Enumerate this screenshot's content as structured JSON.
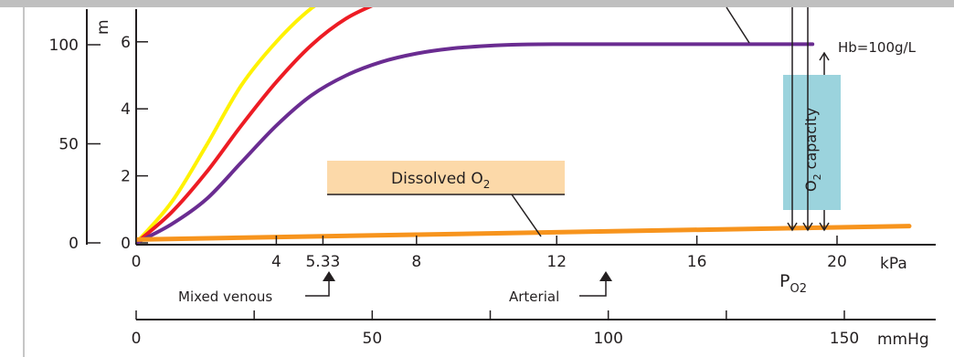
{
  "chart_data": {
    "type": "line",
    "title": "",
    "axes": {
      "kpa": {
        "unit": "kPa",
        "range": [
          0,
          20
        ],
        "ticks": [
          "0",
          "4",
          "5.33",
          "8",
          "12",
          "16",
          "20"
        ],
        "tick_values": [
          0,
          4,
          5.33,
          8,
          12,
          16,
          20
        ]
      },
      "mmhg": {
        "unit": "mmHg",
        "range": [
          0,
          150
        ],
        "ticks": [
          "0",
          "50",
          "100",
          "150"
        ],
        "tick_values": [
          0,
          50,
          100,
          150
        ]
      },
      "saturation_left": {
        "ticks": [
          "0",
          "50",
          "100"
        ],
        "tick_values": [
          0,
          50,
          100
        ]
      },
      "content_mmol": {
        "label_fragment": "m",
        "ticks": [
          "0",
          "2",
          "4",
          "6"
        ],
        "tick_values": [
          0,
          2,
          4,
          6
        ]
      },
      "xlabel_main": "P",
      "xlabel_sub": "O2"
    },
    "series": [
      {
        "name": "Hb=100g/L",
        "color": "#6a2c91",
        "x": [
          0,
          1,
          2,
          3,
          4,
          5,
          6,
          7,
          8,
          9,
          10,
          11,
          12,
          14,
          16,
          18,
          19.3
        ],
        "y": [
          0,
          0.55,
          1.3,
          2.4,
          3.5,
          4.4,
          5.0,
          5.4,
          5.65,
          5.8,
          5.88,
          5.92,
          5.93,
          5.93,
          5.93,
          5.93,
          5.93
        ]
      },
      {
        "name": "",
        "color": "#ed1c24",
        "x": [
          0,
          1,
          2,
          3,
          4,
          5,
          6,
          7,
          7.5
        ],
        "y": [
          0,
          0.9,
          2.1,
          3.5,
          4.8,
          5.9,
          6.7,
          7.2,
          7.4
        ]
      },
      {
        "name": "",
        "color": "#fff200",
        "x": [
          0,
          1,
          2,
          3,
          4,
          5,
          5.7
        ],
        "y": [
          0,
          1.2,
          2.9,
          4.7,
          6.0,
          7.0,
          7.4
        ]
      },
      {
        "name": "Dissolved O2",
        "color": "#f7941d",
        "x": [
          0,
          20
        ],
        "y": [
          0.1,
          0.5
        ]
      }
    ],
    "annotations": {
      "hb_label": "Hb=100g/L",
      "dissolved_label": "Dissolved O",
      "dissolved_sub": "2",
      "capacity_label_main": "O",
      "capacity_label_sub": "2",
      "capacity_label_rest": " capacity",
      "mixed_venous": "Mixed venous",
      "arterial": "Arterial"
    },
    "colors": {
      "capacity_box": "#9bd3dd",
      "dissolved_box": "#fcd9a9"
    }
  }
}
